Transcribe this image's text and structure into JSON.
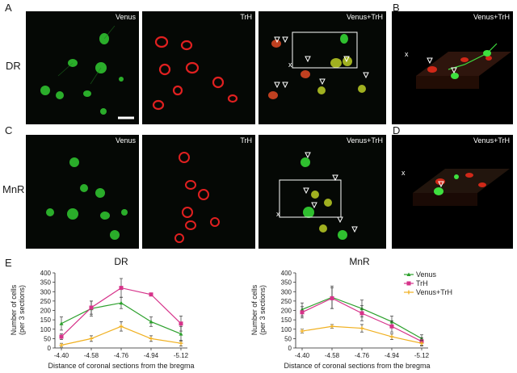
{
  "panel_letters": {
    "a": "A",
    "b": "B",
    "c": "C",
    "d": "D",
    "e": "E"
  },
  "row_labels": {
    "dr": "DR",
    "mnr": "MnR"
  },
  "micrographs": {
    "a1": {
      "label": "Venus",
      "stain": "green"
    },
    "a2": {
      "label": "TrH",
      "stain": "red"
    },
    "a3": {
      "label": "Venus+TrH",
      "stain": "merge"
    },
    "b": {
      "label": "Venus+TrH",
      "stain": "3d"
    },
    "c1": {
      "label": "Venus",
      "stain": "green"
    },
    "c2": {
      "label": "TrH",
      "stain": "red"
    },
    "c3": {
      "label": "Venus+TrH",
      "stain": "merge"
    },
    "d": {
      "label": "Venus+TrH",
      "stain": "3d"
    }
  },
  "markers": {
    "x": "x"
  },
  "colors": {
    "venus": "#2ca02c",
    "trh": "#d6338a",
    "merge": "#f0b020",
    "box": "#ffffff"
  },
  "chart_data": [
    {
      "type": "line",
      "title": "DR",
      "xlabel": "Distance of coronal sections from the bregma",
      "ylabel": "Number of cells (per 3 sections)",
      "ylabel_lines": [
        "Number of cells",
        "(per 3 sections)"
      ],
      "x": [
        "-4.40",
        "-4.58",
        "-4.76",
        "-4.94",
        "-5.12"
      ],
      "ylim": [
        0,
        400
      ],
      "yticks": [
        0,
        50,
        100,
        150,
        200,
        250,
        300,
        350,
        400
      ],
      "series": [
        {
          "name": "Venus",
          "color": "#2ca02c",
          "marker": "triangle",
          "values": [
            130,
            210,
            240,
            140,
            75
          ],
          "errors": [
            35,
            40,
            30,
            25,
            40
          ]
        },
        {
          "name": "TrH",
          "color": "#d6338a",
          "marker": "square",
          "values": [
            60,
            215,
            320,
            285,
            130
          ],
          "errors": [
            15,
            35,
            50,
            8,
            40
          ]
        },
        {
          "name": "Venus+TrH",
          "color": "#f0b020",
          "marker": "cross",
          "values": [
            15,
            50,
            115,
            50,
            25
          ],
          "errors": [
            10,
            15,
            25,
            15,
            15
          ]
        }
      ],
      "legend": "none"
    },
    {
      "type": "line",
      "title": "MnR",
      "xlabel": "Distance of coronal sections from the bregma",
      "ylabel": "Number of cells (per 3 sections)",
      "ylabel_lines": [
        "Number of cells",
        "(per 3 sections)"
      ],
      "x": [
        "-4.40",
        "-4.58",
        "-4.76",
        "-4.94",
        "-5.12"
      ],
      "ylim": [
        0,
        400
      ],
      "yticks": [
        0,
        50,
        100,
        150,
        200,
        250,
        300,
        350,
        400
      ],
      "series": [
        {
          "name": "Venus",
          "color": "#2ca02c",
          "marker": "triangle",
          "values": [
            205,
            270,
            210,
            140,
            50
          ],
          "errors": [
            35,
            60,
            45,
            30,
            20
          ]
        },
        {
          "name": "TrH",
          "color": "#d6338a",
          "marker": "square",
          "values": [
            190,
            265,
            185,
            115,
            35
          ],
          "errors": [
            30,
            55,
            40,
            30,
            20
          ]
        },
        {
          "name": "Venus+TrH",
          "color": "#f0b020",
          "marker": "cross",
          "values": [
            90,
            115,
            105,
            60,
            25
          ],
          "errors": [
            10,
            10,
            20,
            15,
            15
          ]
        }
      ],
      "legend": "top-right"
    }
  ]
}
